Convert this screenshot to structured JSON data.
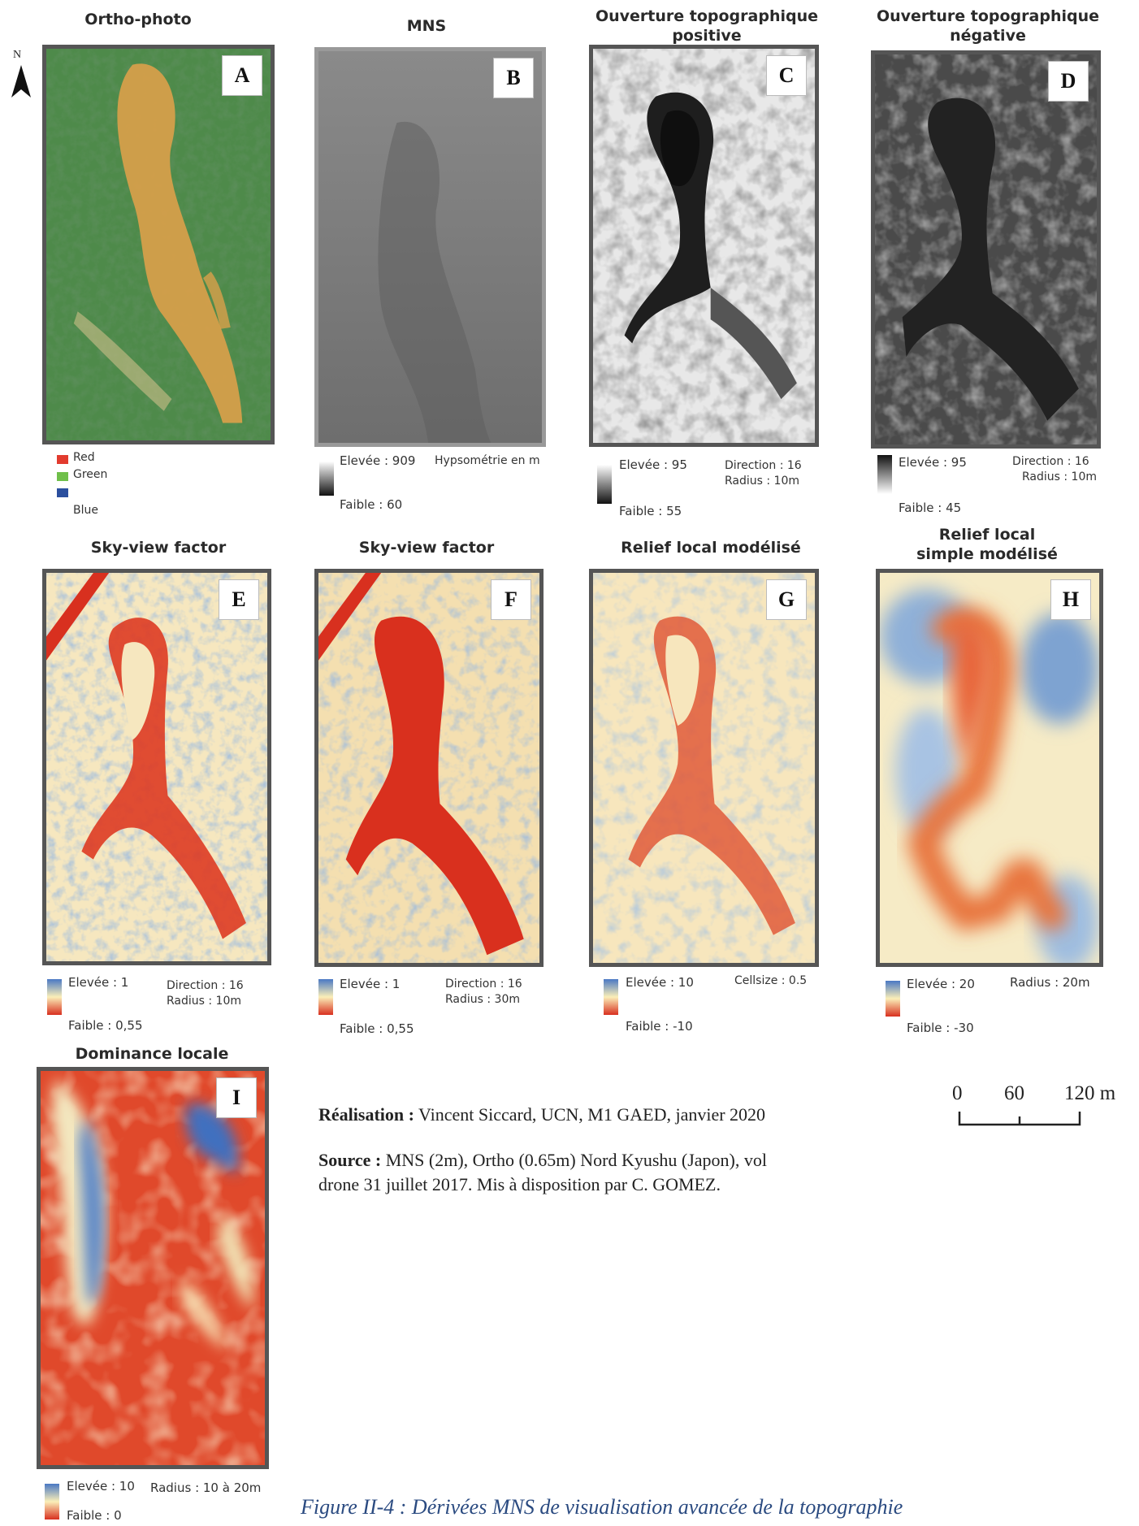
{
  "north": {
    "label": "N"
  },
  "panels": {
    "A": {
      "title": "Ortho-photo",
      "letter": "A"
    },
    "B": {
      "title": "MNS",
      "letter": "B"
    },
    "C": {
      "title_line1": "Ouverture topographique",
      "title_line2": "positive",
      "letter": "C"
    },
    "D": {
      "title_line1": "Ouverture topographique",
      "title_line2": "négative",
      "letter": "D"
    },
    "E": {
      "title": "Sky-view factor",
      "letter": "E"
    },
    "F": {
      "title": "Sky-view factor",
      "letter": "F"
    },
    "G": {
      "title": "Relief local modélisé",
      "letter": "G"
    },
    "H": {
      "title_line1": "Relief local",
      "title_line2": "simple modélisé",
      "letter": "H"
    },
    "I": {
      "title": "Dominance locale",
      "letter": "I"
    }
  },
  "legends": {
    "A": {
      "red": "Red",
      "green": "Green",
      "blue": "Blue"
    },
    "B": {
      "high": "Elevée : 909",
      "low": "Faible : 60",
      "note": "Hypsométrie en m"
    },
    "C": {
      "high": "Elevée : 95",
      "low": "Faible : 55",
      "p1": "Direction : 16",
      "p2": "Radius : 10m"
    },
    "D": {
      "high": "Elevée : 95",
      "low": "Faible : 45",
      "p1": "Direction : 16",
      "p2": "Radius : 10m"
    },
    "E": {
      "high": "Elevée : 1",
      "low": "Faible : 0,55",
      "p1": "Direction : 16",
      "p2": "Radius : 10m"
    },
    "F": {
      "high": "Elevée : 1",
      "low": "Faible : 0,55",
      "p1": "Direction : 16",
      "p2": "Radius : 30m"
    },
    "G": {
      "high": "Elevée : 10",
      "low": "Faible : -10",
      "p1": "Cellsize : 0.5"
    },
    "H": {
      "high": "Elevée : 20",
      "low": "Faible : -30",
      "p1": "Radius : 20m"
    },
    "I": {
      "high": "Elevée : 10",
      "low": "Faible : 0",
      "p1": "Radius : 10 à 20m"
    }
  },
  "credits": {
    "realisation_label": "Réalisation :",
    "realisation_text": " Vincent Siccard, UCN, M1 GAED, janvier 2020",
    "source_label": "Source :",
    "source_text_1": " MNS (2m), Ortho (0.65m) Nord Kyushu (Japon), vol",
    "source_text_2": "drone 31 juillet 2017. Mis à disposition par C. GOMEZ."
  },
  "scale": {
    "t0": "0",
    "t1": "60",
    "t2": "120 m"
  },
  "caption": "Figure II-4 : Dérivées MNS de visualisation avancée de la topographie",
  "colors": {
    "ramp_high_blue": "#4a78c4",
    "ramp_mid_yellow": "#fbefb8",
    "ramp_low_red": "#d8301f",
    "forest_green": "#3d6e3a",
    "landslide_orange": "#d9a04a",
    "caption_blue": "#2a4a80"
  }
}
